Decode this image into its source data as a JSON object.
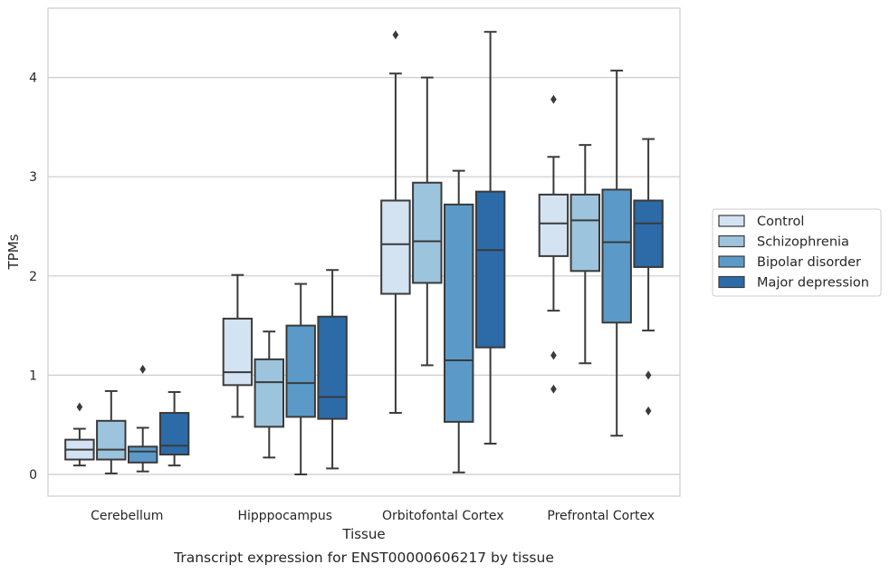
{
  "chart_data": {
    "type": "box",
    "title": "",
    "caption": "Transcript expression for ENST00000606217 by tissue",
    "xlabel": "Tissue",
    "ylabel": "TPMs",
    "ylim": [
      -0.22,
      4.68
    ],
    "yticks": [
      0,
      1,
      2,
      3,
      4
    ],
    "grid": "horizontal",
    "legend_position": "right",
    "categories": [
      "Cerebellum",
      "Hipppocampus",
      "Orbitofontal Cortex",
      "Prefrontal Cortex"
    ],
    "series": [
      {
        "name": "Control",
        "color": "#d4e3f2",
        "boxes": [
          {
            "whislo": 0.09,
            "q1": 0.15,
            "med": 0.25,
            "q3": 0.35,
            "whishi": 0.46,
            "fliers": [
              0.68
            ]
          },
          {
            "whislo": 0.58,
            "q1": 0.9,
            "med": 1.03,
            "q3": 1.57,
            "whishi": 2.01,
            "fliers": []
          },
          {
            "whislo": 0.62,
            "q1": 1.82,
            "med": 2.32,
            "q3": 2.76,
            "whishi": 4.04,
            "fliers": [
              4.43
            ]
          },
          {
            "whislo": 1.65,
            "q1": 2.2,
            "med": 2.53,
            "q3": 2.82,
            "whishi": 3.2,
            "fliers": [
              3.78,
              1.2,
              0.86
            ]
          }
        ]
      },
      {
        "name": "Schizophrenia",
        "color": "#9cc4dd",
        "boxes": [
          {
            "whislo": 0.01,
            "q1": 0.15,
            "med": 0.25,
            "q3": 0.54,
            "whishi": 0.84,
            "fliers": []
          },
          {
            "whislo": 0.17,
            "q1": 0.48,
            "med": 0.93,
            "q3": 1.16,
            "whishi": 1.44,
            "fliers": []
          },
          {
            "whislo": 1.1,
            "q1": 1.93,
            "med": 2.35,
            "q3": 2.94,
            "whishi": 4.0,
            "fliers": []
          },
          {
            "whislo": 1.12,
            "q1": 2.05,
            "med": 2.56,
            "q3": 2.82,
            "whishi": 3.32,
            "fliers": []
          }
        ]
      },
      {
        "name": "Bipolar disorder",
        "color": "#5b9ac8",
        "boxes": [
          {
            "whislo": 0.03,
            "q1": 0.12,
            "med": 0.23,
            "q3": 0.28,
            "whishi": 0.47,
            "fliers": [
              1.06
            ]
          },
          {
            "whislo": 0.0,
            "q1": 0.58,
            "med": 0.92,
            "q3": 1.5,
            "whishi": 1.92,
            "fliers": []
          },
          {
            "whislo": 0.02,
            "q1": 0.53,
            "med": 1.15,
            "q3": 2.72,
            "whishi": 3.06,
            "fliers": []
          },
          {
            "whislo": 0.39,
            "q1": 1.53,
            "med": 2.34,
            "q3": 2.87,
            "whishi": 4.07,
            "fliers": []
          }
        ]
      },
      {
        "name": "Major depression",
        "color": "#2c6ba8",
        "boxes": [
          {
            "whislo": 0.09,
            "q1": 0.2,
            "med": 0.29,
            "q3": 0.62,
            "whishi": 0.83,
            "fliers": []
          },
          {
            "whislo": 0.06,
            "q1": 0.56,
            "med": 0.78,
            "q3": 1.59,
            "whishi": 2.06,
            "fliers": []
          },
          {
            "whislo": 0.31,
            "q1": 1.28,
            "med": 2.26,
            "q3": 2.85,
            "whishi": 4.46,
            "fliers": []
          },
          {
            "whislo": 1.45,
            "q1": 2.09,
            "med": 2.53,
            "q3": 2.76,
            "whishi": 3.38,
            "fliers": [
              1.0,
              0.64
            ]
          }
        ]
      }
    ]
  }
}
